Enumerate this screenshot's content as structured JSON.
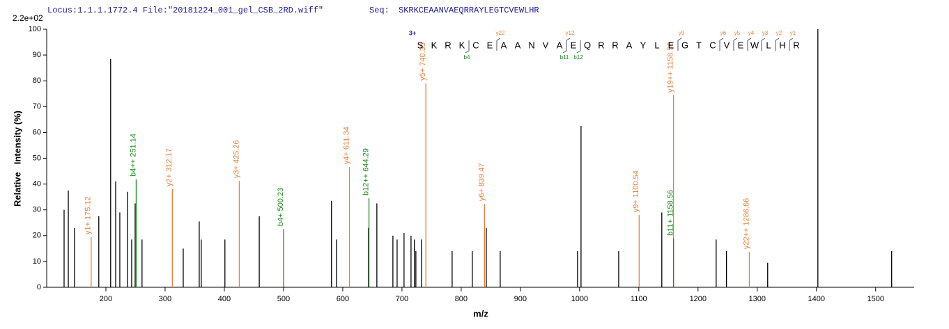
{
  "chart_data": {
    "type": "spectrum",
    "header": {
      "locus": "Locus:1.1.1.1772.4 File:\"20181224_001_gel_CSB_2RD.wiff\"",
      "seq_label": "Seq:",
      "sequence": "SKRKCEAANVAEQRRAYLEGTCVEWLHR"
    },
    "scale_label": "2.2e+02",
    "xlabel": "m/z",
    "ylabel": "Relative   Intensity (%)",
    "xlim": [
      100,
      1565
    ],
    "xticks": [
      200,
      300,
      400,
      500,
      600,
      700,
      800,
      900,
      1000,
      1100,
      1200,
      1300,
      1400,
      1500
    ],
    "ylim": [
      0,
      100
    ],
    "yticks": [
      0,
      10,
      20,
      30,
      40,
      50,
      60,
      70,
      80,
      90,
      100
    ],
    "series": [
      {
        "color": "#000000",
        "x": [
          129.4,
          136.5,
          147,
          188,
          208,
          216.5,
          223.5,
          236.5,
          243.5,
          249.4,
          261,
          330.6,
          357.6,
          361,
          401,
          459,
          581,
          589.4,
          643.5,
          657.6,
          684.7,
          691.8,
          703.5,
          715.3,
          721,
          723.5,
          733,
          784.7,
          818.8,
          842.4,
          865.9,
          996.5,
          1002.4,
          1066,
          1138.8,
          1230.6,
          1248,
          1317.6,
          1402.4,
          1527
        ],
        "values": [
          30,
          37.5,
          23,
          27.5,
          88.5,
          41,
          29,
          37,
          18.5,
          32.5,
          18.5,
          15,
          25.5,
          18.5,
          18.5,
          27.5,
          33.5,
          18.5,
          23,
          32.5,
          20,
          18.5,
          21,
          20,
          18.5,
          14,
          18.5,
          14,
          14,
          23,
          14,
          14,
          62.5,
          14,
          29,
          18.5,
          14,
          9.5,
          100,
          14
        ]
      },
      {
        "color": "#e8803a",
        "x": [
          175.12,
          312.17,
          425.26,
          611.34,
          740.35,
          839.47,
          1100.54,
          1158.56,
          1286.66
        ],
        "values": [
          19.4,
          38,
          41.2,
          46.6,
          79,
          32.3,
          28,
          74.4,
          13.7
        ],
        "labels": [
          "y1+ 175.12",
          "y2+ 312.17",
          "y3+ 425.26",
          "y4+ 611.34",
          "y5+ 740.35",
          "y6+ 839.47",
          "y9+ 1100.54",
          "y19++ 1158.56",
          "y22++ 1286.66"
        ]
      },
      {
        "color": "#1b8a1b",
        "x": [
          251.14,
          500.23,
          644.29,
          1158.56
        ],
        "values": [
          41.8,
          22.6,
          34.5,
          18.9
        ],
        "labels": [
          "b4++ 251.14",
          "b4+ 500.23",
          "b12++ 644.29",
          "b11+ 1158.56"
        ]
      }
    ],
    "fragment_map": {
      "charge": "3+",
      "residues": [
        {
          "aa": "S"
        },
        {
          "aa": "K"
        },
        {
          "aa": "R"
        },
        {
          "aa": "K",
          "b": "b4"
        },
        {
          "aa": "C"
        },
        {
          "aa": "E"
        },
        {
          "aa": "A",
          "y": "y22"
        },
        {
          "aa": "A"
        },
        {
          "aa": "N"
        },
        {
          "aa": "V"
        },
        {
          "aa": "A",
          "b": "b11"
        },
        {
          "aa": "E",
          "y": "y12",
          "b": "b12"
        },
        {
          "aa": "Q"
        },
        {
          "aa": "R"
        },
        {
          "aa": "R"
        },
        {
          "aa": "A"
        },
        {
          "aa": "Y"
        },
        {
          "aa": "L"
        },
        {
          "aa": "E"
        },
        {
          "aa": "G",
          "y": "y9"
        },
        {
          "aa": "T"
        },
        {
          "aa": "C"
        },
        {
          "aa": "V",
          "y": "y6"
        },
        {
          "aa": "E",
          "y": "y5"
        },
        {
          "aa": "W",
          "y": "y4"
        },
        {
          "aa": "L",
          "y": "y3"
        },
        {
          "aa": "H",
          "y": "y2"
        },
        {
          "aa": "R",
          "y": "y1"
        }
      ]
    }
  }
}
